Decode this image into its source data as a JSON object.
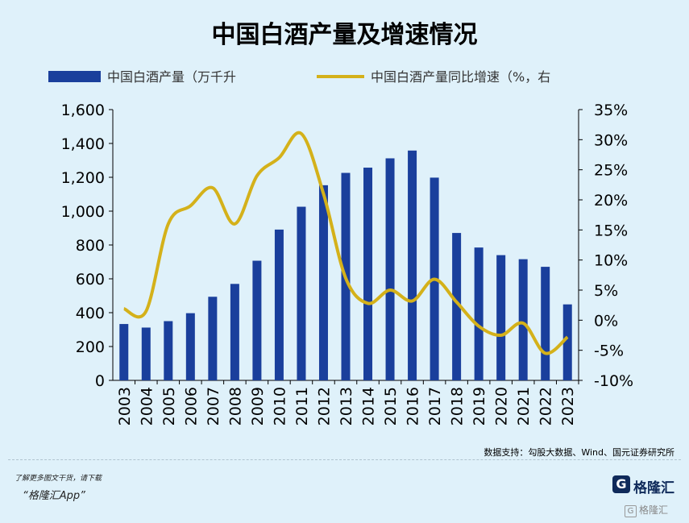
{
  "title": "中国白酒产量及增速情况",
  "chart_data": {
    "type": "bar+line",
    "categories": [
      "2003",
      "2004",
      "2005",
      "2006",
      "2007",
      "2008",
      "2009",
      "2010",
      "2011",
      "2012",
      "2013",
      "2014",
      "2015",
      "2016",
      "2017",
      "2018",
      "2019",
      "2020",
      "2021",
      "2022",
      "2023"
    ],
    "series": [
      {
        "name": "中国白酒产量（万千升",
        "type": "bar",
        "axis": "left",
        "color": "#1a3f9c",
        "values": [
          333,
          312,
          350,
          397,
          494,
          570,
          707,
          891,
          1026,
          1153,
          1226,
          1257,
          1312,
          1358,
          1198,
          871,
          785,
          740,
          716,
          671,
          449
        ]
      },
      {
        "name": "中国白酒产量同比增速（%，右",
        "type": "line",
        "axis": "right",
        "color": "#d4b11a",
        "values": [
          1.9,
          1.5,
          16.0,
          19.0,
          22.0,
          16.0,
          24.0,
          27.0,
          31.0,
          21.0,
          7.0,
          2.8,
          5.0,
          3.2,
          6.8,
          3.0,
          -1.0,
          -2.5,
          -0.5,
          -5.5,
          -2.8
        ]
      }
    ],
    "y_left": {
      "min": 0,
      "max": 1600,
      "ticks": [
        "0",
        "200",
        "400",
        "600",
        "800",
        "1,000",
        "1,200",
        "1,400",
        "1,600"
      ]
    },
    "y_right": {
      "min": -10,
      "max": 35,
      "ticks": [
        "-10%",
        "-5%",
        "0%",
        "5%",
        "10%",
        "15%",
        "20%",
        "25%",
        "30%",
        "35%"
      ]
    },
    "legend_position": "top",
    "grid": false
  },
  "source": "数据支持：勾股大数据、Wind、国元证券研究所",
  "promo": "了解更多图文干货，请下载",
  "app": "“格隆汇App”",
  "logo_text": "格隆汇",
  "watermark_text": "格隆汇"
}
